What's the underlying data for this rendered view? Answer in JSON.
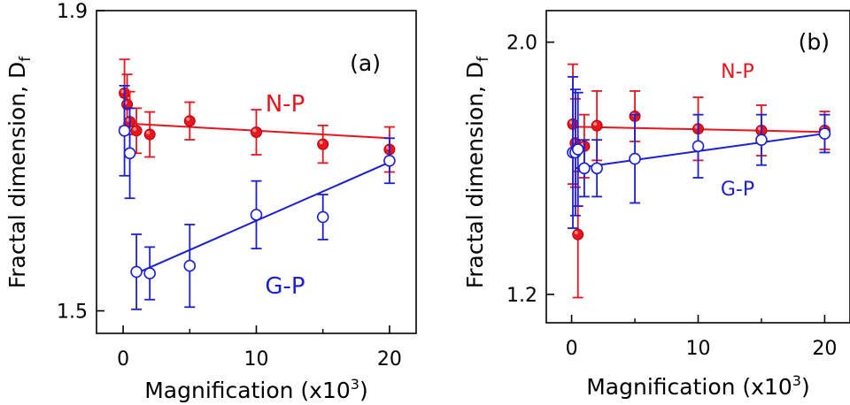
{
  "chart_data": [
    {
      "type": "scatter",
      "panel_label": "(a)",
      "xlabel_main": "Magnification (x10",
      "xlabel_sup": "3",
      "xlabel_tail": ")",
      "ylabel_main": "Fractal dimension, D",
      "ylabel_sub": "f",
      "xlim": [
        -2,
        22
      ],
      "ylim": [
        1.47,
        1.9
      ],
      "xticks": [
        0,
        10,
        20
      ],
      "xtick_labels": [
        "0",
        "10",
        "20"
      ],
      "yticks": [
        1.5,
        1.9
      ],
      "ytick_labels": [
        "1.5",
        "1.9"
      ],
      "series": [
        {
          "name": "N-P",
          "color": "#e8141e",
          "marker": "filled-circle",
          "x": [
            0.1,
            0.3,
            0.5,
            1,
            2,
            5,
            10,
            15,
            20
          ],
          "y": [
            1.79,
            1.775,
            1.752,
            1.74,
            1.735,
            1.753,
            1.738,
            1.722,
            1.715
          ],
          "yerr": [
            0.045,
            0.04,
            0.04,
            0.03,
            0.03,
            0.025,
            0.03,
            0.025,
            0.03
          ],
          "fit": [
            [
              0,
              1.75
            ],
            [
              20,
              1.73
            ]
          ],
          "label_pos": "upper-right"
        },
        {
          "name": "G-P",
          "color": "#1b1fd6",
          "marker": "open-circle",
          "x": [
            0.1,
            0.5,
            1,
            2,
            5,
            10,
            15,
            20
          ],
          "y": [
            1.74,
            1.71,
            1.552,
            1.55,
            1.56,
            1.628,
            1.625,
            1.7
          ],
          "yerr": [
            0.06,
            0.06,
            0.05,
            0.035,
            0.055,
            0.045,
            0.03,
            0.03
          ],
          "fit": [
            [
              1,
              1.55
            ],
            [
              20,
              1.698
            ]
          ],
          "label_pos": "lower-right"
        }
      ]
    },
    {
      "type": "scatter",
      "panel_label": "(b)",
      "xlabel_main": "Magnification (x10",
      "xlabel_sup": "3",
      "xlabel_tail": ")",
      "ylabel_main": "Fractal dimension, D",
      "ylabel_sub": "f",
      "xlim": [
        -2,
        22
      ],
      "ylim": [
        1.11,
        2.1
      ],
      "xticks": [
        0,
        10,
        20
      ],
      "xtick_labels": [
        "0",
        "10",
        "20"
      ],
      "yticks": [
        1.2,
        2.0
      ],
      "ytick_labels": [
        "1.2",
        "2.0"
      ],
      "series": [
        {
          "name": "N-P",
          "color": "#e8141e",
          "marker": "filled-circle",
          "x": [
            0.1,
            0.3,
            0.5,
            1,
            2,
            5,
            10,
            15,
            20
          ],
          "y": [
            1.74,
            1.68,
            1.39,
            1.67,
            1.735,
            1.765,
            1.725,
            1.72,
            1.72
          ],
          "yerr": [
            0.19,
            0.14,
            0.2,
            0.1,
            0.11,
            0.08,
            0.1,
            0.08,
            0.06
          ],
          "fit": [
            [
              0,
              1.732
            ],
            [
              20,
              1.715
            ]
          ],
          "label_pos": "upper-center"
        },
        {
          "name": "G-P",
          "color": "#1b1fd6",
          "marker": "open-circle",
          "x": [
            0.1,
            0.3,
            0.5,
            1,
            2,
            5,
            10,
            15,
            20
          ],
          "y": [
            1.65,
            1.65,
            1.66,
            1.6,
            1.6,
            1.63,
            1.67,
            1.69,
            1.71
          ],
          "yerr": [
            0.24,
            0.2,
            0.18,
            0.09,
            0.09,
            0.14,
            0.1,
            0.08,
            0.06
          ],
          "fit": [
            [
              0.3,
              1.6
            ],
            [
              20,
              1.71
            ]
          ],
          "label_pos": "lower-center"
        }
      ]
    }
  ]
}
